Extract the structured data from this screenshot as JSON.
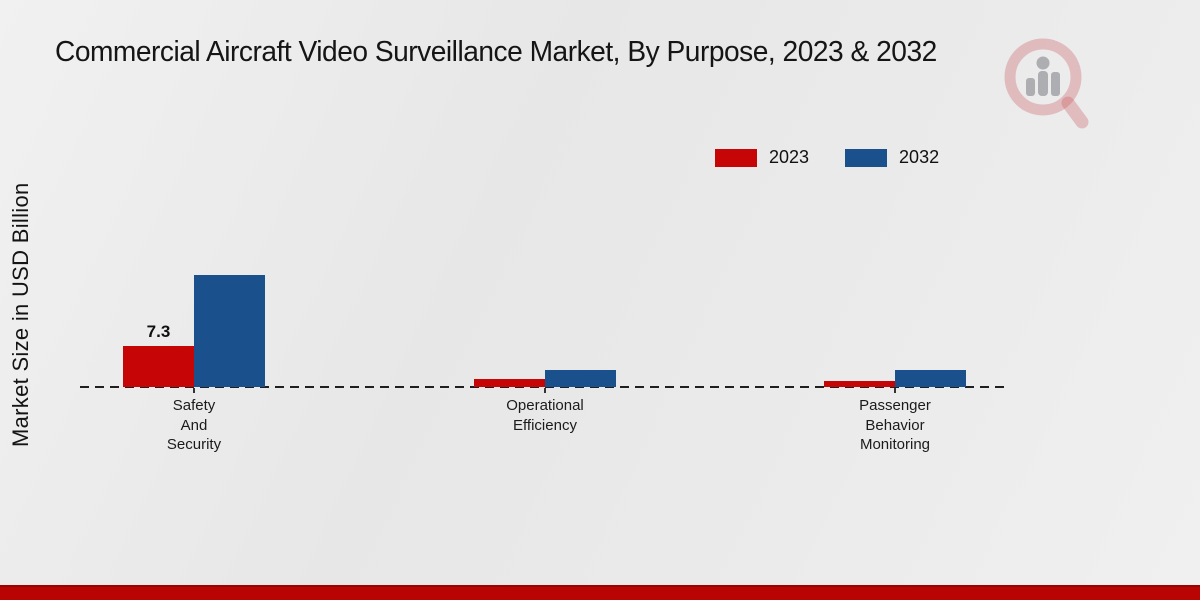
{
  "chart_data": {
    "type": "bar",
    "title": "Commercial Aircraft Video Surveillance Market, By Purpose, 2023 & 2032",
    "ylabel": "Market Size in USD Billion",
    "xlabel": "",
    "categories": [
      "Safety\nAnd\nSecurity",
      "Operational\nEfficiency",
      "Passenger\nBehavior\nMonitoring"
    ],
    "series": [
      {
        "name": "2023",
        "color": "#c60606",
        "values": [
          7.3,
          1.4,
          1.1
        ]
      },
      {
        "name": "2032",
        "color": "#1a518c",
        "values": [
          19.9,
          3.1,
          3.0
        ]
      }
    ],
    "value_labels": [
      {
        "series_index": 0,
        "category_index": 0,
        "text": "7.3"
      }
    ],
    "ylim": [
      0,
      22
    ],
    "grid": false,
    "zero_line_style": "dashed",
    "legend_position": "top-right"
  },
  "legend": {
    "items": [
      {
        "label": "2023",
        "color": "#c60606"
      },
      {
        "label": "2032",
        "color": "#1a518c"
      }
    ]
  },
  "branding": {
    "logo": "magnifier-bar-chart-watermark",
    "footer_color": "#b90404"
  }
}
